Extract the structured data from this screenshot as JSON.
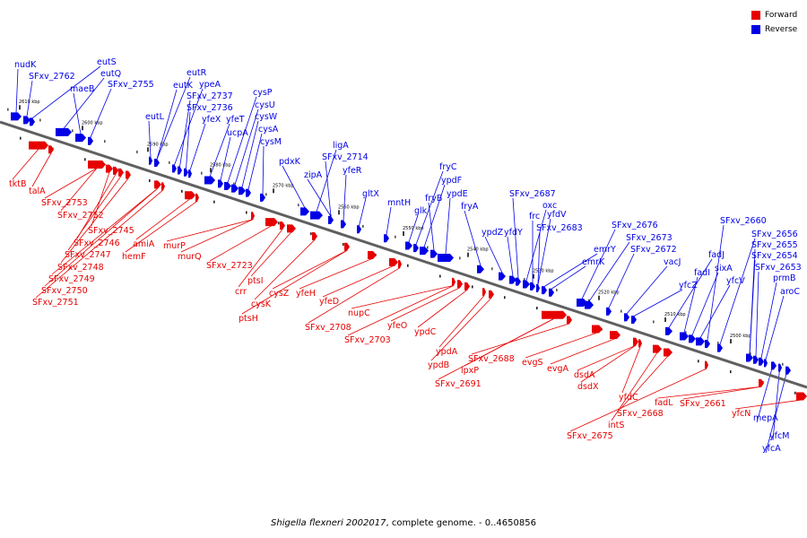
{
  "legend": {
    "forward_label": "Forward",
    "reverse_label": "Reverse",
    "forward_color": "#e60000",
    "reverse_color": "#0000e6"
  },
  "caption": {
    "organism": "Shigella flexneri 2002017",
    "rest": ", complete genome. - 0..4650856"
  },
  "ticks": [
    "2610 kbp",
    "2600 kbp",
    "2590 kbp",
    "2580 kbp",
    "2570 kbp",
    "2560 kbp",
    "2550 kbp",
    "2540 kbp",
    "2530 kbp",
    "2520 kbp",
    "2510 kbp",
    "2500 kbp"
  ],
  "reverse_genes": [
    "nudK",
    "SFxv_2762",
    "eutS",
    "eutQ",
    "maeB",
    "SFxv_2755",
    "eutL",
    "eutK",
    "eutR",
    "ypeA",
    "SFxv_2737",
    "SFxv_2736",
    "yfeX",
    "yfeT",
    "ucpA",
    "cysP",
    "cysU",
    "cysW",
    "cysA",
    "cysM",
    "pdxK",
    "ligA",
    "SFxv_2714",
    "zipA",
    "yfeR",
    "gltX",
    "mntH",
    "glk",
    "fryC",
    "ypdF",
    "fryB",
    "ypdE",
    "fryA",
    "ypdZ",
    "yfdY",
    "SFxv_2687",
    "oxc",
    "frc",
    "yfdV",
    "SFxv_2683",
    "emrY",
    "emrK",
    "SFxv_2676",
    "SFxv_2673",
    "SFxv_2672",
    "vacJ",
    "yfcZ",
    "fadJ",
    "fadI",
    "sixA",
    "yfcV",
    "SFxv_2660",
    "SFxv_2656",
    "SFxv_2655",
    "SFxv_2654",
    "SFxv_2653",
    "prmB",
    "aroC",
    "mepA",
    "yfcM",
    "yfcA"
  ],
  "forward_genes": [
    "tktB",
    "talA",
    "SFxv_2753",
    "SFxv_2752",
    "SFxv_2745",
    "SFxv_2746",
    "SFxv_2747",
    "SFxv_2748",
    "SFxv_2749",
    "SFxv_2750",
    "SFxv_2751",
    "amiA",
    "hemF",
    "murP",
    "murQ",
    "SFxv_2723",
    "crr",
    "ptsI",
    "cysK",
    "ptsH",
    "cysZ",
    "yfeH",
    "yfeD",
    "SFxv_2708",
    "nupC",
    "SFxv_2703",
    "yfeO",
    "ypdC",
    "ypdA",
    "ypdB",
    "SFxv_2691",
    "lpxP",
    "SFxv_2688",
    "evgS",
    "evgA",
    "dsdA",
    "dsdX",
    "yfdC",
    "intS",
    "SFxv_2668",
    "SFxv_2675",
    "fadL",
    "SFxv_2661",
    "yfcN"
  ]
}
